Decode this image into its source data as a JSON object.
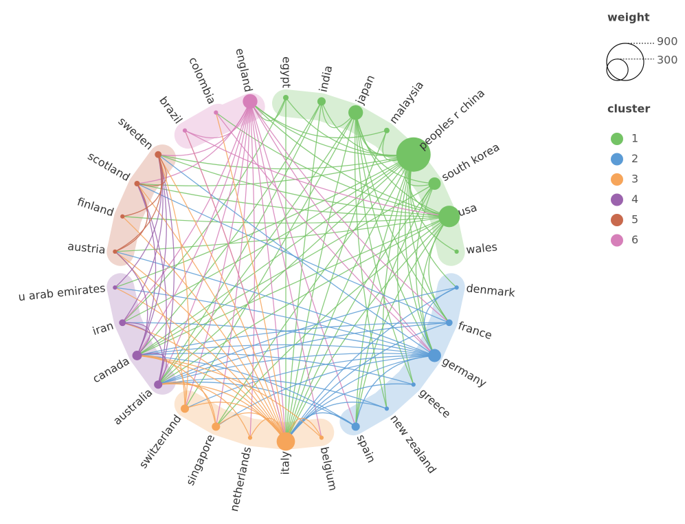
{
  "chart_data": {
    "type": "network",
    "size_title": "weight",
    "size_legend": [
      900,
      300
    ],
    "cluster_title": "cluster",
    "clusters": [
      {
        "name": "1",
        "color": "#74c365"
      },
      {
        "name": "2",
        "color": "#5b9bd5"
      },
      {
        "name": "3",
        "color": "#f6a55a"
      },
      {
        "name": "4",
        "color": "#9b63ad"
      },
      {
        "name": "5",
        "color": "#c8694d"
      },
      {
        "name": "6",
        "color": "#d67fb9"
      }
    ],
    "nodes": [
      {
        "label": "england",
        "cluster": 6,
        "weight": 140
      },
      {
        "label": "egypt",
        "cluster": 1,
        "weight": 20
      },
      {
        "label": "india",
        "cluster": 1,
        "weight": 45
      },
      {
        "label": "japan",
        "cluster": 1,
        "weight": 140
      },
      {
        "label": "malaysia",
        "cluster": 1,
        "weight": 20
      },
      {
        "label": "peoples r china",
        "cluster": 1,
        "weight": 770
      },
      {
        "label": "south korea",
        "cluster": 1,
        "weight": 100
      },
      {
        "label": "usa",
        "cluster": 1,
        "weight": 300
      },
      {
        "label": "wales",
        "cluster": 1,
        "weight": 12
      },
      {
        "label": "denmark",
        "cluster": 2,
        "weight": 12
      },
      {
        "label": "france",
        "cluster": 2,
        "weight": 30
      },
      {
        "label": "germany",
        "cluster": 2,
        "weight": 110
      },
      {
        "label": "greece",
        "cluster": 2,
        "weight": 12
      },
      {
        "label": "new zealand",
        "cluster": 2,
        "weight": 12
      },
      {
        "label": "spain",
        "cluster": 2,
        "weight": 45
      },
      {
        "label": "belgium",
        "cluster": 3,
        "weight": 12
      },
      {
        "label": "italy",
        "cluster": 3,
        "weight": 220
      },
      {
        "label": "netherlands",
        "cluster": 3,
        "weight": 12
      },
      {
        "label": "singapore",
        "cluster": 3,
        "weight": 45
      },
      {
        "label": "switzerland",
        "cluster": 3,
        "weight": 45
      },
      {
        "label": "australia",
        "cluster": 4,
        "weight": 45
      },
      {
        "label": "canada",
        "cluster": 4,
        "weight": 60
      },
      {
        "label": "iran",
        "cluster": 4,
        "weight": 30
      },
      {
        "label": "u arab emirates",
        "cluster": 4,
        "weight": 12
      },
      {
        "label": "austria",
        "cluster": 5,
        "weight": 12
      },
      {
        "label": "finland",
        "cluster": 5,
        "weight": 12
      },
      {
        "label": "scotland",
        "cluster": 5,
        "weight": 20
      },
      {
        "label": "sweden",
        "cluster": 5,
        "weight": 30
      },
      {
        "label": "brazil",
        "cluster": 6,
        "weight": 12
      },
      {
        "label": "colombia",
        "cluster": 6,
        "weight": 12
      }
    ],
    "links": [
      [
        5,
        3
      ],
      [
        5,
        2
      ],
      [
        5,
        4
      ],
      [
        5,
        6
      ],
      [
        5,
        7
      ],
      [
        5,
        8
      ],
      [
        5,
        1
      ],
      [
        5,
        0
      ],
      [
        5,
        11
      ],
      [
        5,
        10
      ],
      [
        5,
        14
      ],
      [
        5,
        16
      ],
      [
        5,
        21
      ],
      [
        5,
        20
      ],
      [
        5,
        22
      ],
      [
        5,
        18
      ],
      [
        5,
        13
      ],
      [
        5,
        12
      ],
      [
        5,
        9
      ],
      [
        5,
        27
      ],
      [
        5,
        26
      ],
      [
        5,
        23
      ],
      [
        7,
        3
      ],
      [
        7,
        6
      ],
      [
        7,
        0
      ],
      [
        7,
        11
      ],
      [
        7,
        16
      ],
      [
        7,
        21
      ],
      [
        7,
        20
      ],
      [
        7,
        24
      ],
      [
        7,
        26
      ],
      [
        7,
        27
      ],
      [
        7,
        18
      ],
      [
        7,
        14
      ],
      [
        7,
        10
      ],
      [
        7,
        25
      ],
      [
        7,
        29
      ],
      [
        3,
        6
      ],
      [
        3,
        2
      ],
      [
        3,
        11
      ],
      [
        3,
        16
      ],
      [
        3,
        20
      ],
      [
        3,
        19
      ],
      [
        3,
        13
      ],
      [
        3,
        12
      ],
      [
        3,
        10
      ],
      [
        6,
        11
      ],
      [
        6,
        21
      ],
      [
        6,
        16
      ],
      [
        6,
        14
      ],
      [
        2,
        16
      ],
      [
        2,
        20
      ],
      [
        2,
        21
      ],
      [
        1,
        0
      ],
      [
        1,
        16
      ],
      [
        1,
        22
      ],
      [
        4,
        0
      ],
      [
        4,
        16
      ],
      [
        0,
        16
      ],
      [
        0,
        11
      ],
      [
        0,
        14
      ],
      [
        0,
        20
      ],
      [
        0,
        21
      ],
      [
        0,
        18
      ],
      [
        0,
        17
      ],
      [
        0,
        19
      ],
      [
        0,
        22
      ],
      [
        0,
        28
      ],
      [
        0,
        26
      ],
      [
        0,
        27
      ],
      [
        0,
        10
      ],
      [
        0,
        15
      ],
      [
        11,
        16
      ],
      [
        11,
        20
      ],
      [
        11,
        21
      ],
      [
        11,
        14
      ],
      [
        11,
        19
      ],
      [
        11,
        27
      ],
      [
        11,
        24
      ],
      [
        11,
        9
      ],
      [
        11,
        18
      ],
      [
        11,
        22
      ],
      [
        11,
        23
      ],
      [
        10,
        16
      ],
      [
        10,
        21
      ],
      [
        10,
        26
      ],
      [
        10,
        20
      ],
      [
        9,
        16
      ],
      [
        9,
        20
      ],
      [
        12,
        16
      ],
      [
        12,
        21
      ],
      [
        13,
        16
      ],
      [
        13,
        20
      ],
      [
        14,
        16
      ],
      [
        14,
        20
      ],
      [
        14,
        21
      ],
      [
        16,
        20
      ],
      [
        16,
        21
      ],
      [
        16,
        22
      ],
      [
        16,
        23
      ],
      [
        16,
        24
      ],
      [
        16,
        27
      ],
      [
        16,
        28
      ],
      [
        16,
        29
      ],
      [
        16,
        18
      ],
      [
        16,
        19
      ],
      [
        16,
        17
      ],
      [
        16,
        15
      ],
      [
        16,
        25
      ],
      [
        16,
        26
      ],
      [
        19,
        21
      ],
      [
        19,
        24
      ],
      [
        19,
        27
      ],
      [
        18,
        21
      ],
      [
        18,
        20
      ],
      [
        17,
        20
      ],
      [
        15,
        21
      ],
      [
        20,
        21
      ],
      [
        20,
        22
      ],
      [
        20,
        27
      ],
      [
        20,
        26
      ],
      [
        21,
        22
      ],
      [
        21,
        27
      ],
      [
        21,
        24
      ],
      [
        21,
        26
      ],
      [
        22,
        27
      ],
      [
        23,
        27
      ],
      [
        24,
        27
      ],
      [
        25,
        27
      ],
      [
        26,
        27
      ],
      [
        24,
        26
      ],
      [
        28,
        16
      ],
      [
        28,
        7
      ],
      [
        29,
        11
      ]
    ]
  }
}
